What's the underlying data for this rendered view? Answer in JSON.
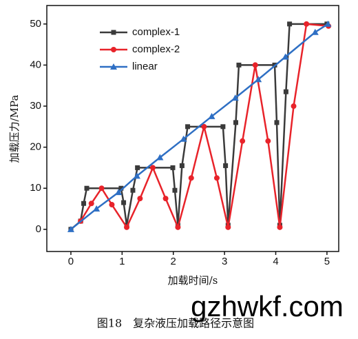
{
  "chart_data": {
    "type": "line",
    "xlabel": "加载时间/s",
    "ylabel": "加载压力/MPa",
    "caption": "图18　复杂液压加载路径示意图",
    "watermark": "gzhwkf.com",
    "xlim": [
      -0.47,
      5.23
    ],
    "ylim": [
      -5.4,
      54.5
    ],
    "xticks": [
      0,
      1,
      2,
      3,
      4,
      5
    ],
    "yticks": [
      0,
      10,
      20,
      30,
      40,
      50
    ],
    "legend": "upper-left",
    "series": [
      {
        "name": "complex-1",
        "color": "#3a3a3a",
        "marker": "square",
        "x": [
          0,
          0.19,
          0.25,
          0.31,
          0.98,
          1.03,
          1.09,
          1.21,
          1.3,
          1.99,
          2.03,
          2.09,
          2.17,
          2.28,
          2.97,
          3.02,
          3.07,
          3.22,
          3.28,
          3.98,
          4.02,
          4.08,
          4.2,
          4.27,
          5.0
        ],
        "values": [
          0,
          2,
          6.3,
          10,
          10,
          6.5,
          1,
          9.5,
          15,
          15,
          9.5,
          1,
          15.5,
          25,
          25,
          15.5,
          1,
          26,
          40,
          40,
          26,
          1,
          33.5,
          50,
          50
        ]
      },
      {
        "name": "complex-2",
        "color": "#e8232a",
        "marker": "circle",
        "x": [
          0.19,
          0.4,
          0.6,
          0.8,
          1.09,
          1.35,
          1.6,
          1.85,
          2.09,
          2.35,
          2.6,
          2.85,
          3.07,
          3.35,
          3.6,
          3.85,
          4.08,
          4.35,
          4.6,
          5.03
        ],
        "values": [
          2,
          6.3,
          10,
          6,
          0.5,
          7.5,
          15,
          7.5,
          0.5,
          12.5,
          25,
          12.5,
          0.5,
          21.5,
          40,
          21.5,
          0.5,
          30,
          50,
          49.5
        ]
      },
      {
        "name": "linear",
        "color": "#2e6fc4",
        "marker": "triangle",
        "x": [
          0,
          0.5,
          0.93,
          1.29,
          1.74,
          2.2,
          2.75,
          3.21,
          3.66,
          4.19,
          4.77,
          5.02
        ],
        "values": [
          0,
          5,
          9,
          13,
          17.5,
          22,
          27.5,
          32,
          36.5,
          42,
          48,
          50
        ]
      }
    ]
  }
}
